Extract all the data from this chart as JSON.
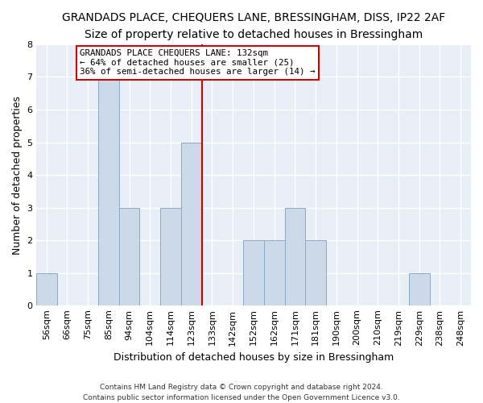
{
  "title": "GRANDADS PLACE, CHEQUERS LANE, BRESSINGHAM, DISS, IP22 2AF",
  "subtitle": "Size of property relative to detached houses in Bressingham",
  "xlabel": "Distribution of detached houses by size in Bressingham",
  "ylabel": "Number of detached properties",
  "footer_line1": "Contains HM Land Registry data © Crown copyright and database right 2024.",
  "footer_line2": "Contains public sector information licensed under the Open Government Licence v3.0.",
  "bin_labels": [
    "56sqm",
    "66sqm",
    "75sqm",
    "85sqm",
    "94sqm",
    "104sqm",
    "114sqm",
    "123sqm",
    "133sqm",
    "142sqm",
    "152sqm",
    "162sqm",
    "171sqm",
    "181sqm",
    "190sqm",
    "200sqm",
    "210sqm",
    "219sqm",
    "229sqm",
    "238sqm",
    "248sqm"
  ],
  "bar_heights": [
    1,
    0,
    0,
    7,
    3,
    0,
    3,
    5,
    0,
    0,
    2,
    2,
    3,
    2,
    0,
    0,
    0,
    0,
    1,
    0,
    0
  ],
  "bar_color": "#ccd9e8",
  "bar_edge_color": "#8aaac8",
  "vline_color": "#cc0000",
  "annotation_title": "GRANDADS PLACE CHEQUERS LANE: 132sqm",
  "annotation_line2": "← 64% of detached houses are smaller (25)",
  "annotation_line3": "36% of semi-detached houses are larger (14) →",
  "annotation_box_edge_color": "#cc0000",
  "annotation_box_face_color": "#ffffff",
  "ylim": [
    0,
    8
  ],
  "background_color": "#ffffff",
  "plot_bg_color": "#e8eef5",
  "grid_color": "#ffffff",
  "title_fontsize": 10,
  "axis_label_fontsize": 9,
  "tick_fontsize": 8
}
